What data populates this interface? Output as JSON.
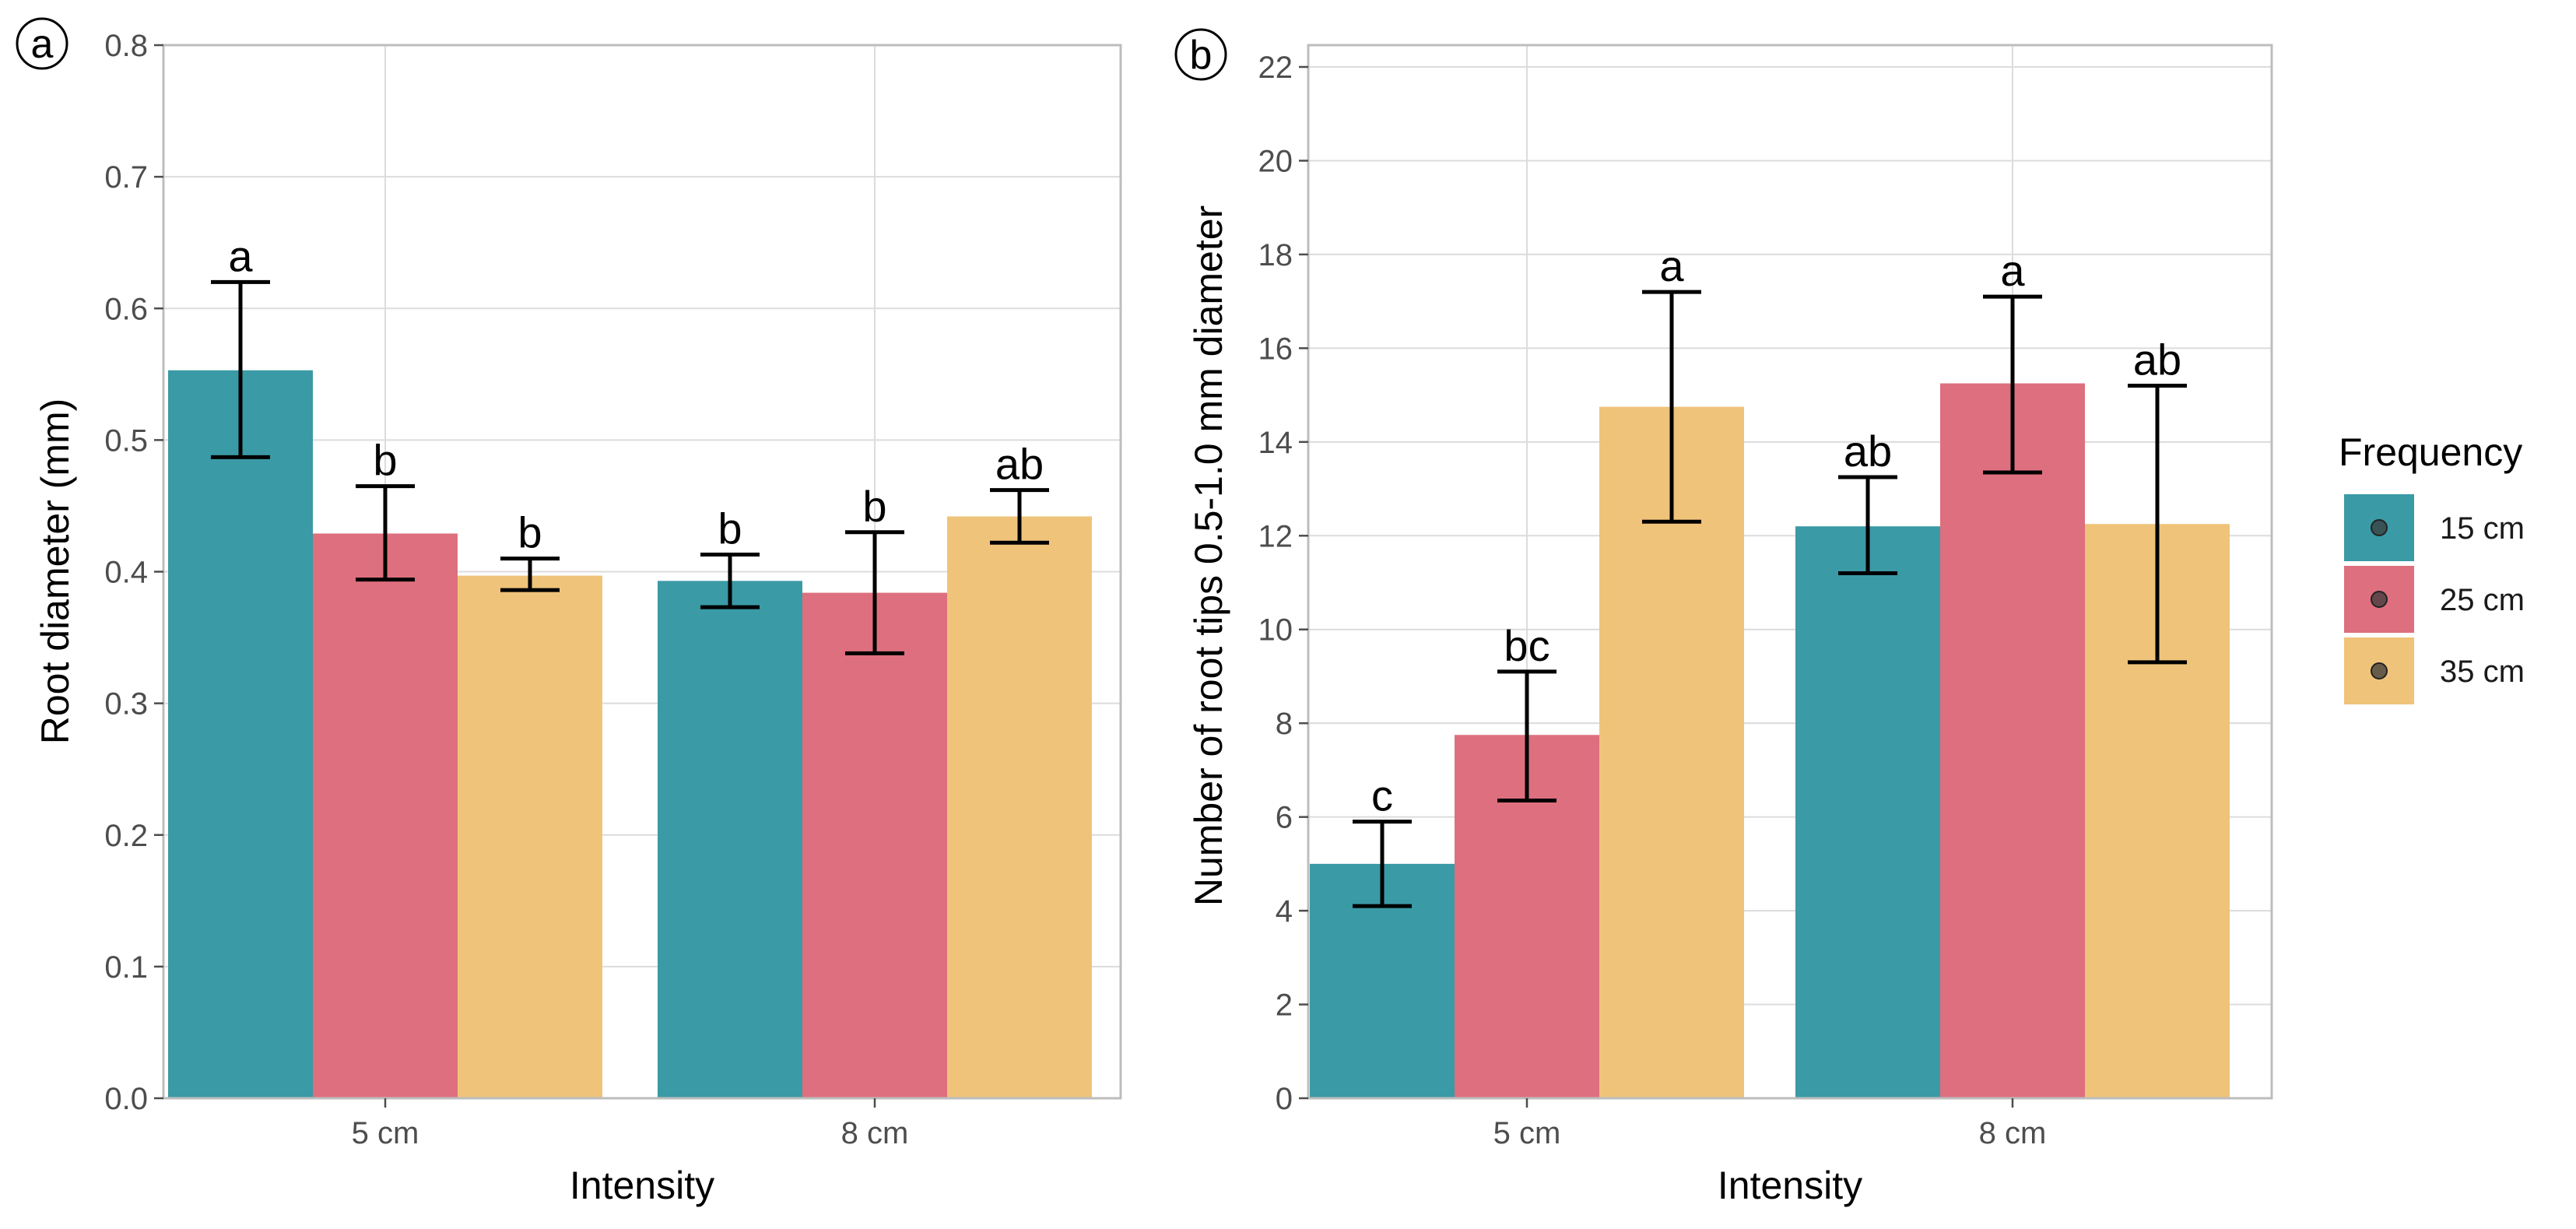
{
  "legend": {
    "title": "Frequency",
    "items": [
      {
        "label": "15 cm",
        "color": "#3a9aa6"
      },
      {
        "label": "25 cm",
        "color": "#de6f7e"
      },
      {
        "label": "35 cm",
        "color": "#f0c37a"
      }
    ]
  },
  "chart_data": [
    {
      "panel": "a",
      "type": "bar",
      "title": "",
      "xlabel": "Intensity",
      "ylabel": "Root diameter (mm)",
      "categories": [
        "5 cm",
        "8 cm"
      ],
      "ylim": [
        0.0,
        0.8
      ],
      "yticks": [
        0.0,
        0.1,
        0.2,
        0.3,
        0.4,
        0.5,
        0.6,
        0.7,
        0.8
      ],
      "ytick_labels": [
        "0.0",
        "0.1",
        "0.2",
        "0.3",
        "0.4",
        "0.5",
        "0.6",
        "0.7",
        "0.8"
      ],
      "grid": true,
      "series": [
        {
          "name": "15 cm",
          "values": [
            0.553,
            0.393
          ],
          "lower": [
            0.487,
            0.373
          ],
          "upper": [
            0.62,
            0.413
          ],
          "letters": [
            "a",
            "b"
          ]
        },
        {
          "name": "25 cm",
          "values": [
            0.429,
            0.384
          ],
          "lower": [
            0.394,
            0.338
          ],
          "upper": [
            0.465,
            0.43
          ],
          "letters": [
            "b",
            "b"
          ]
        },
        {
          "name": "35 cm",
          "values": [
            0.397,
            0.442
          ],
          "lower": [
            0.386,
            0.422
          ],
          "upper": [
            0.41,
            0.462
          ],
          "letters": [
            "b",
            "ab"
          ]
        }
      ]
    },
    {
      "panel": "b",
      "type": "bar",
      "title": "",
      "xlabel": "Intensity",
      "ylabel": "Number of root tips 0.5-1.0 mm diameter",
      "categories": [
        "5 cm",
        "8 cm"
      ],
      "ylim": [
        0,
        22
      ],
      "yticks": [
        0,
        2,
        4,
        6,
        8,
        10,
        12,
        14,
        16,
        18,
        20,
        22
      ],
      "ytick_labels": [
        "0",
        "2",
        "4",
        "6",
        "8",
        "10",
        "12",
        "14",
        "16",
        "18",
        "20",
        "22"
      ],
      "grid": true,
      "series": [
        {
          "name": "15 cm",
          "values": [
            5.0,
            12.2
          ],
          "lower": [
            4.1,
            11.2
          ],
          "upper": [
            5.9,
            13.25
          ],
          "letters": [
            "c",
            "ab"
          ]
        },
        {
          "name": "25 cm",
          "values": [
            7.75,
            15.25
          ],
          "lower": [
            6.35,
            13.35
          ],
          "upper": [
            9.1,
            17.1
          ],
          "letters": [
            "bc",
            "a"
          ]
        },
        {
          "name": "35 cm",
          "values": [
            14.75,
            12.25
          ],
          "lower": [
            12.3,
            9.3
          ],
          "upper": [
            17.2,
            15.2
          ],
          "letters": [
            "a",
            "ab"
          ]
        }
      ]
    }
  ]
}
